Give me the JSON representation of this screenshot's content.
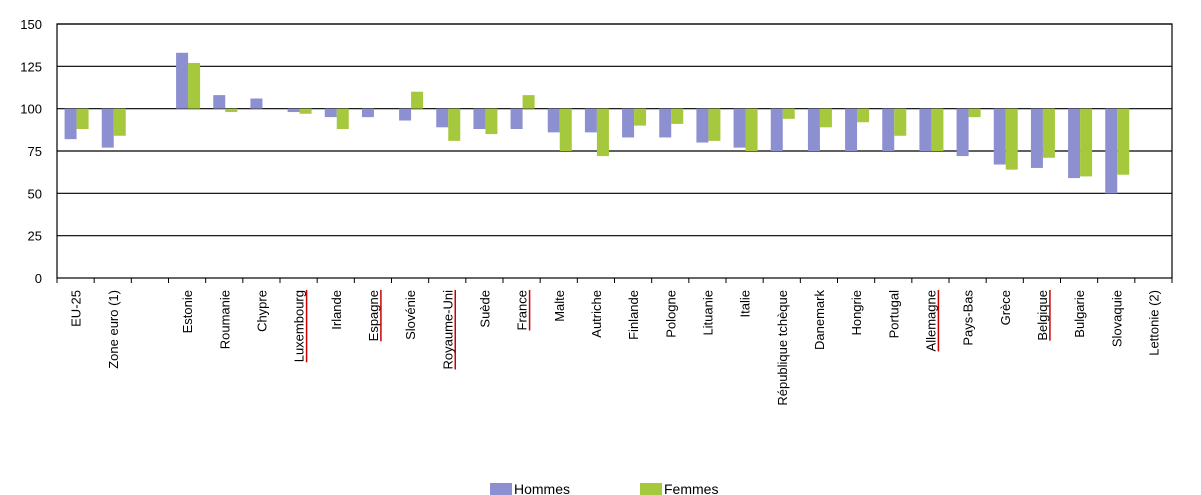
{
  "chart_data": {
    "type": "bar",
    "categories": [
      "EU-25",
      "Zone euro (1)",
      "",
      "Estonie",
      "Roumanie",
      "Chypre",
      "Luxembourg",
      "Irlande",
      "Espagne",
      "Slovénie",
      "Royaume-Uni",
      "Suède",
      "France",
      "Malte",
      "Autriche",
      "Finlande",
      "Pologne",
      "Lituanie",
      "Italie",
      "République tchèque",
      "Danemark",
      "Hongrie",
      "Portugal",
      "Allemagne",
      "Pays-Bas",
      "Grèce",
      "Belgique",
      "Bulgarie",
      "Slovaquie",
      "Lettonie (2)"
    ],
    "underlined": [
      "Luxembourg",
      "Espagne",
      "Royaume-Uni",
      "France",
      "Allemagne",
      "Belgique"
    ],
    "baseline": 100,
    "ylim": [
      0,
      150
    ],
    "yticks": [
      0,
      25,
      50,
      75,
      100,
      125,
      150
    ],
    "grid": true,
    "legend_position": "bottom",
    "series": [
      {
        "name": "Hommes",
        "color": "#8c8fd0",
        "values": [
          82,
          77,
          null,
          133,
          108,
          106,
          98,
          95,
          95,
          93,
          89,
          88,
          88,
          86,
          86,
          83,
          83,
          80,
          77,
          75,
          75,
          75,
          75,
          75,
          72,
          67,
          65,
          59,
          50,
          null
        ]
      },
      {
        "name": "Femmes",
        "color": "#a6c83c",
        "values": [
          88,
          84,
          null,
          127,
          98,
          100,
          97,
          88,
          100,
          110,
          81,
          85,
          108,
          75,
          72,
          90,
          91,
          81,
          75,
          94,
          89,
          92,
          84,
          75,
          95,
          64,
          71,
          60,
          61,
          null
        ]
      }
    ]
  },
  "legend": {
    "hommes": "Hommes",
    "femmes": "Femmes"
  },
  "colors": {
    "underline": "#cc0000",
    "axis": "#000000"
  }
}
